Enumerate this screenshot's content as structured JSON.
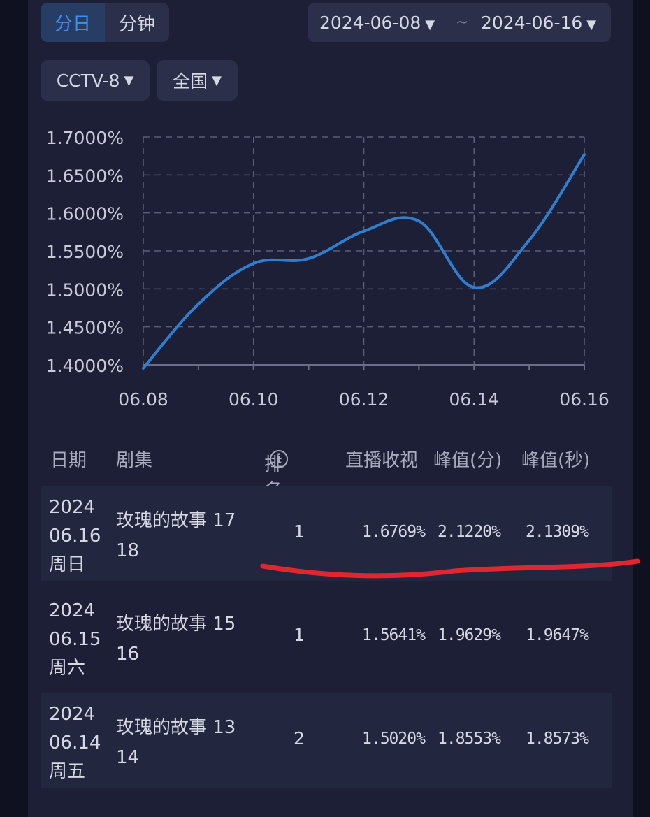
{
  "mode_tabs": [
    {
      "label": "分日",
      "active": true
    },
    {
      "label": "分钟",
      "active": false
    }
  ],
  "date_range": {
    "start": "2024-06-08",
    "separator": "~",
    "end": "2024-06-16"
  },
  "filters": {
    "channel": "CCTV-8",
    "region": "全国"
  },
  "chart_data": {
    "type": "line",
    "x": [
      "06.08",
      "06.09",
      "06.10",
      "06.11",
      "06.12",
      "06.13",
      "06.14",
      "06.15",
      "06.16"
    ],
    "x_tick_labels": [
      "06.08",
      "06.10",
      "06.12",
      "06.14",
      "06.16"
    ],
    "y_tick_labels": [
      "1.7000%",
      "1.6500%",
      "1.6000%",
      "1.5500%",
      "1.5000%",
      "1.4500%",
      "1.4000%"
    ],
    "series": [
      {
        "values": [
          1.3956,
          1.48,
          1.5334,
          1.5399,
          1.576,
          1.5892,
          1.502,
          1.5641,
          1.6769
        ],
        "color": "#2f7fd0"
      }
    ],
    "ylim": [
      1.4,
      1.7
    ],
    "grid": true
  },
  "table": {
    "headers": {
      "date": "日期",
      "drama": "剧集",
      "rank": "排名",
      "live": "直播收视",
      "peak_min": "峰值(分)",
      "peak_sec": "峰值(秒)"
    },
    "rows": [
      {
        "year": "2024",
        "md": "06.16",
        "weekday": "周日",
        "drama_line1": "玫瑰的故事 17",
        "drama_line2": "18",
        "rank": "1",
        "live": "1.6769%",
        "peak_min": "2.1220%",
        "peak_sec": "2.1309%"
      },
      {
        "year": "2024",
        "md": "06.15",
        "weekday": "周六",
        "drama_line1": "玫瑰的故事 15",
        "drama_line2": "16",
        "rank": "1",
        "live": "1.5641%",
        "peak_min": "1.9629%",
        "peak_sec": "1.9647%"
      },
      {
        "year": "2024",
        "md": "06.14",
        "weekday": "周五",
        "drama_line1": "玫瑰的故事 13",
        "drama_line2": "14",
        "rank": "2",
        "live": "1.5020%",
        "peak_min": "1.8553%",
        "peak_sec": "1.8573%"
      }
    ]
  },
  "colors": {
    "accent": "#3d8ff0",
    "line": "#2f7fd0",
    "annotation": "#e0262f"
  }
}
